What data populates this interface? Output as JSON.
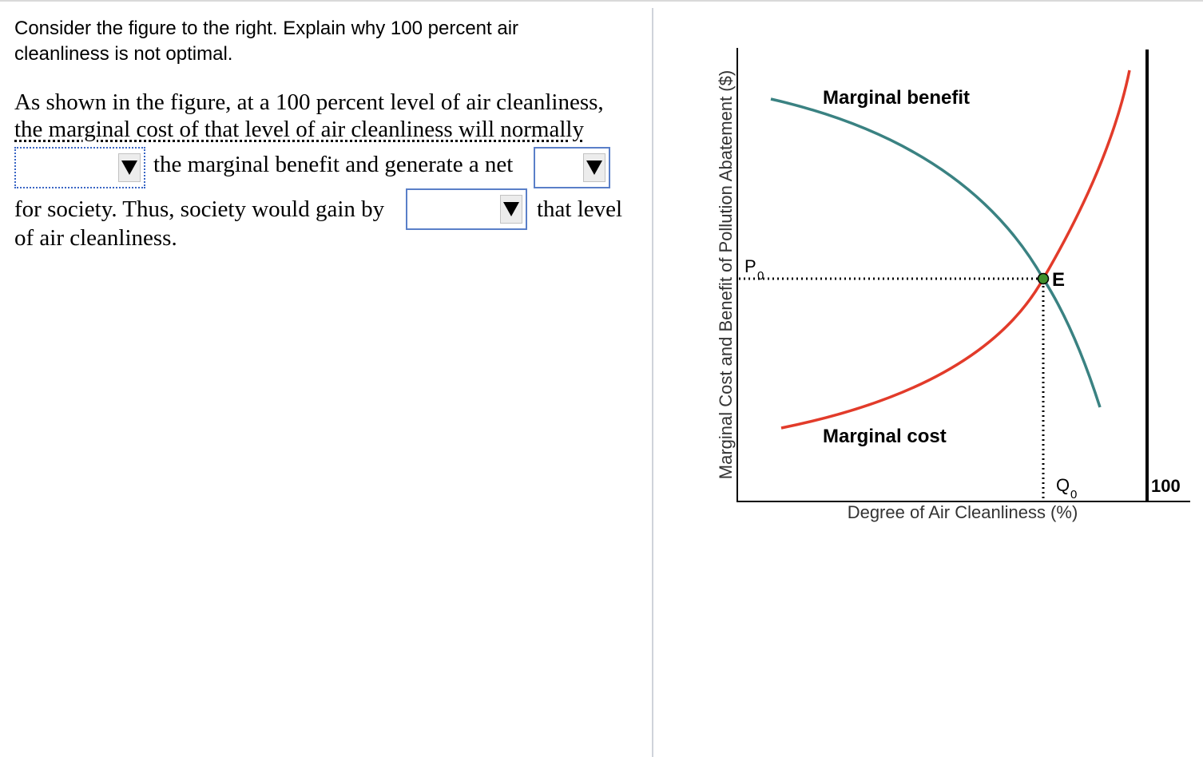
{
  "question": {
    "prompt": "Consider the figure to the right. Explain why 100 percent air cleanliness is not optimal.",
    "answer_text": {
      "line1": "As shown in the figure, at a 100 percent level of air cleanliness,",
      "line2": "the marginal cost of that level of air cleanliness will normally",
      "line3_after_dropdown": "the marginal benefit and generate a net",
      "line4_before_dropdown": "for society. Thus, society would gain by",
      "line4_after_dropdown": "that level",
      "line5": "of air cleanliness."
    },
    "dropdowns": [
      {
        "selected_value": ""
      },
      {
        "selected_value": ""
      },
      {
        "selected_value": ""
      }
    ]
  },
  "figure": {
    "y_axis_label": "Marginal Cost and Benefit of Pollution Abatement ($)",
    "x_axis_label": "Degree of Air Cleanliness (%)",
    "benefit_label": "Marginal benefit",
    "cost_label": "Marginal cost",
    "price_label": "P",
    "price_subscript": "0",
    "quantity_label": "Q",
    "quantity_subscript": "0",
    "equilibrium_label": "E",
    "max_label": "100",
    "colors": {
      "benefit_curve": "#3a8282",
      "cost_curve": "#e23b2a",
      "equilibrium_point": "#3f8f2c",
      "dropdown_border": "#5a7fc8"
    }
  }
}
